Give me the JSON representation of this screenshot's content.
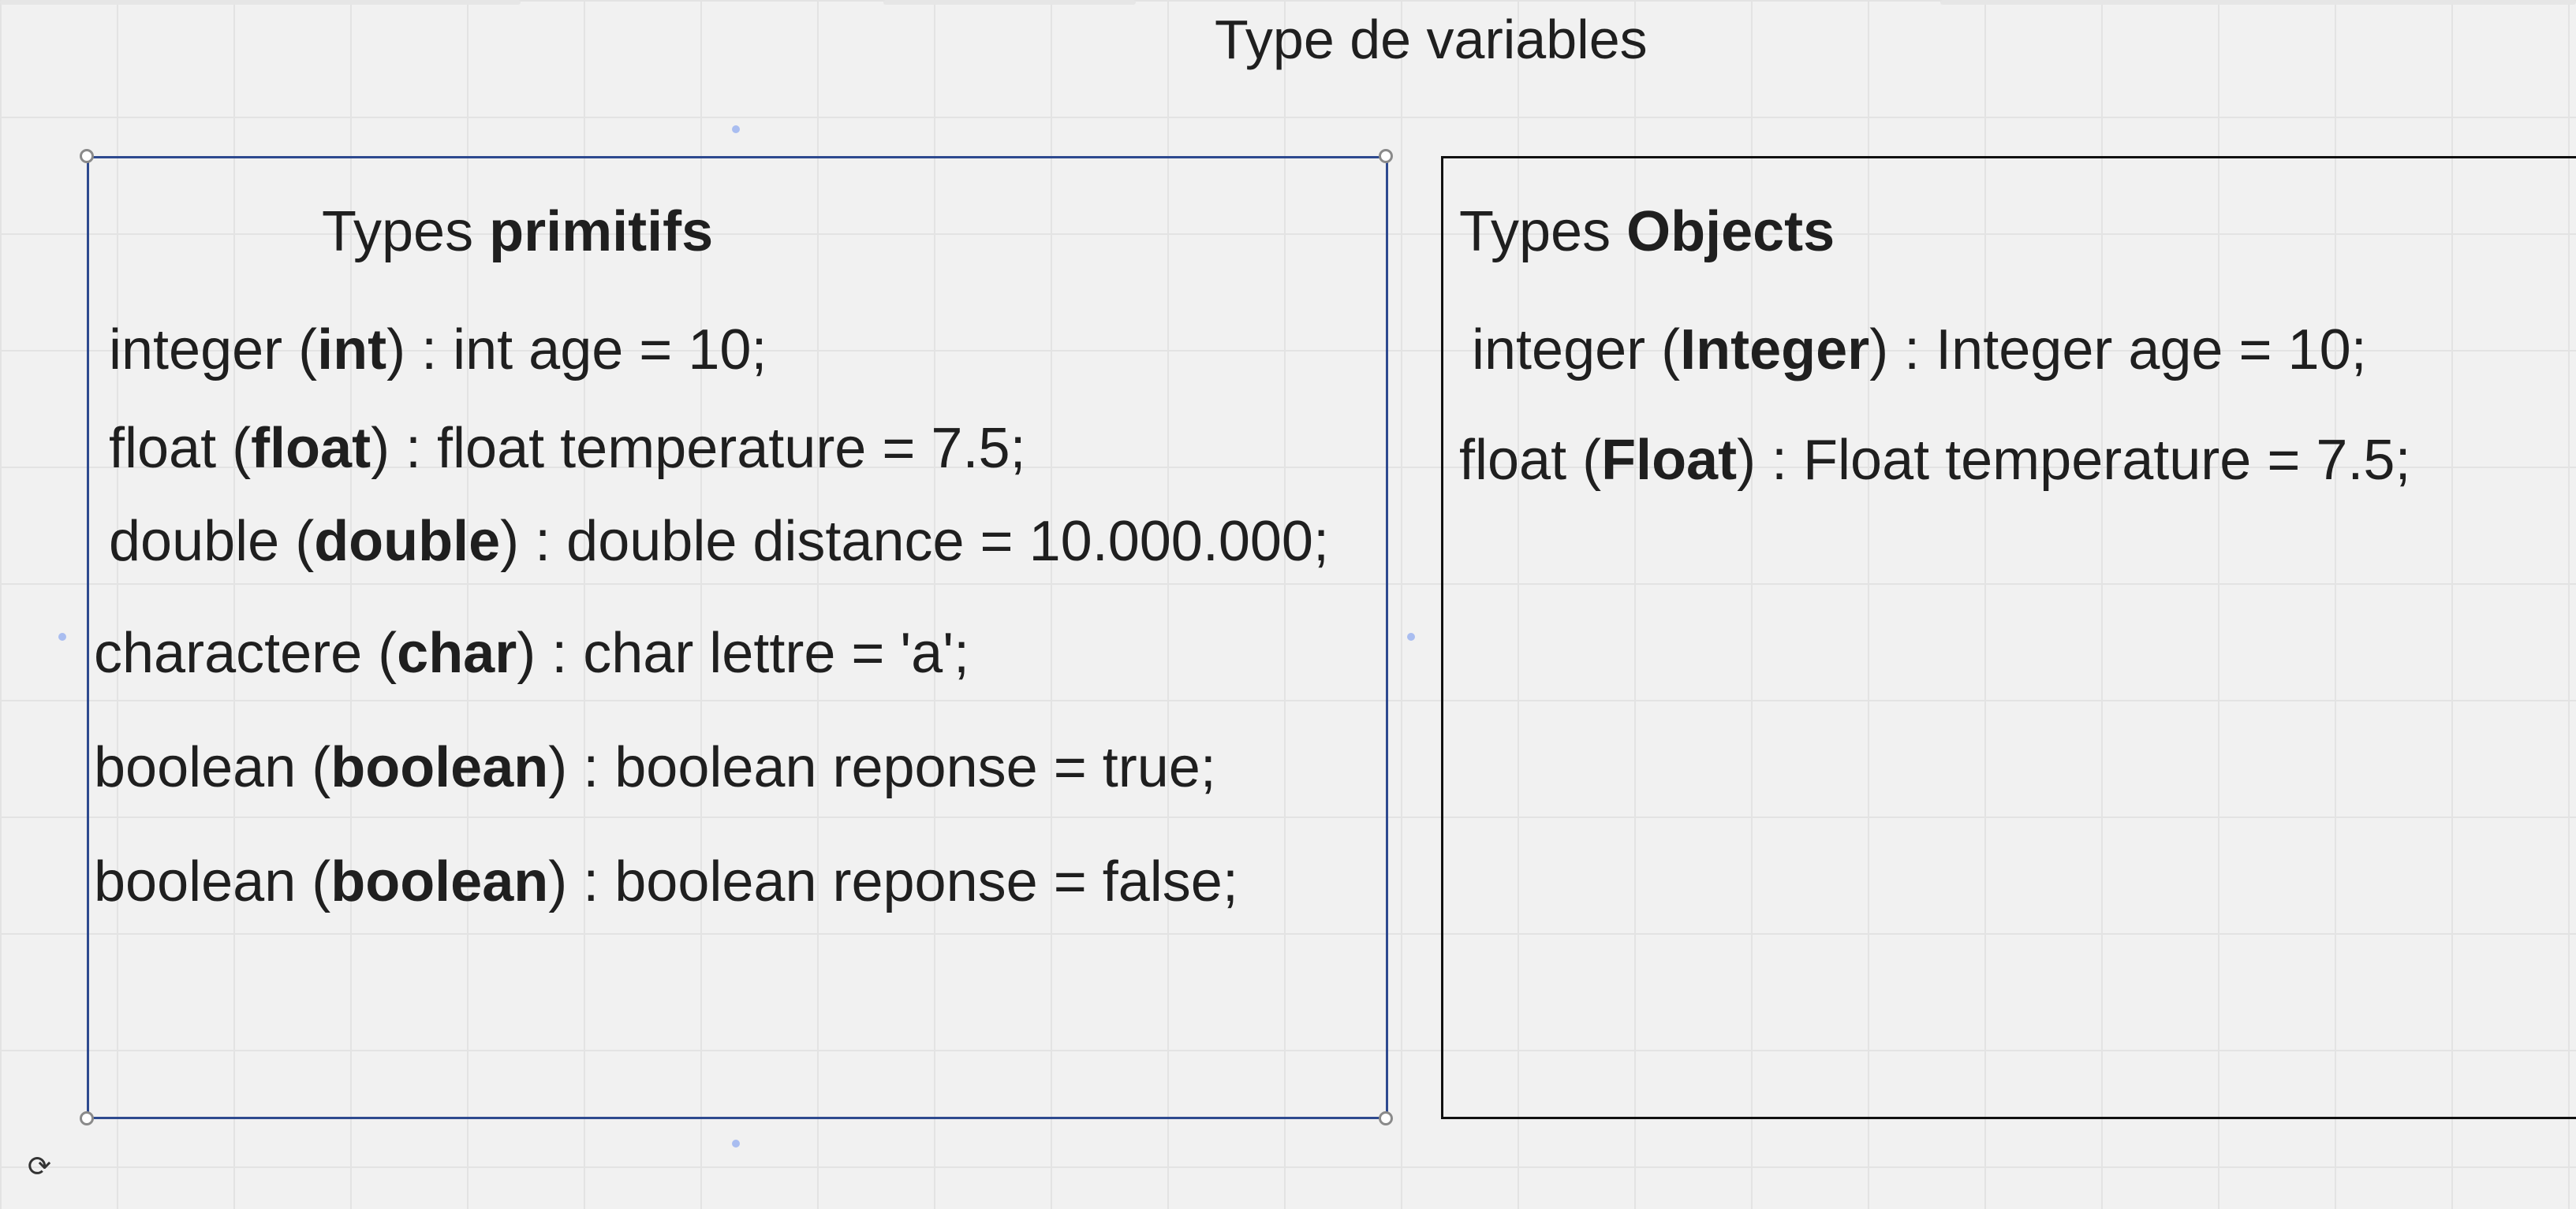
{
  "page": {
    "title": "Type de variables"
  },
  "primitives": {
    "heading_prefix": "Types ",
    "heading_bold": "primitifs",
    "lines": [
      {
        "before": "integer (",
        "bold": "int",
        "after": ") : int age = 10;"
      },
      {
        "before": "float (",
        "bold": "float",
        "after": ") : float temperature = 7.5;"
      },
      {
        "before": "double (",
        "bold": "double",
        "after": ") : double distance = 10.000.000;"
      },
      {
        "before": "charactere (",
        "bold": "char",
        "after": ") : char lettre = 'a';"
      },
      {
        "before": "boolean (",
        "bold": "boolean",
        "after": ") : boolean reponse = true;"
      },
      {
        "before": "boolean (",
        "bold": "boolean",
        "after": ") : boolean reponse = false;"
      }
    ]
  },
  "objects": {
    "heading_prefix": "Types ",
    "heading_bold": "Objects",
    "lines": [
      {
        "before": "integer (",
        "bold": "Integer",
        "after": ") : Integer age = 10;"
      },
      {
        "before": "float (",
        "bold": "Float",
        "after": ") : Float temperature = 7.5;"
      }
    ]
  },
  "icons": {
    "rotate": "rotate-icon",
    "selection_handle": "resize-handle-icon"
  },
  "colors": {
    "selection_border": "#2e4a8f",
    "frame_border": "#111111",
    "canvas_background": "#f1f1f1",
    "grid_line": "#e3e3e3",
    "connector_dot": "#a9bdf0"
  }
}
